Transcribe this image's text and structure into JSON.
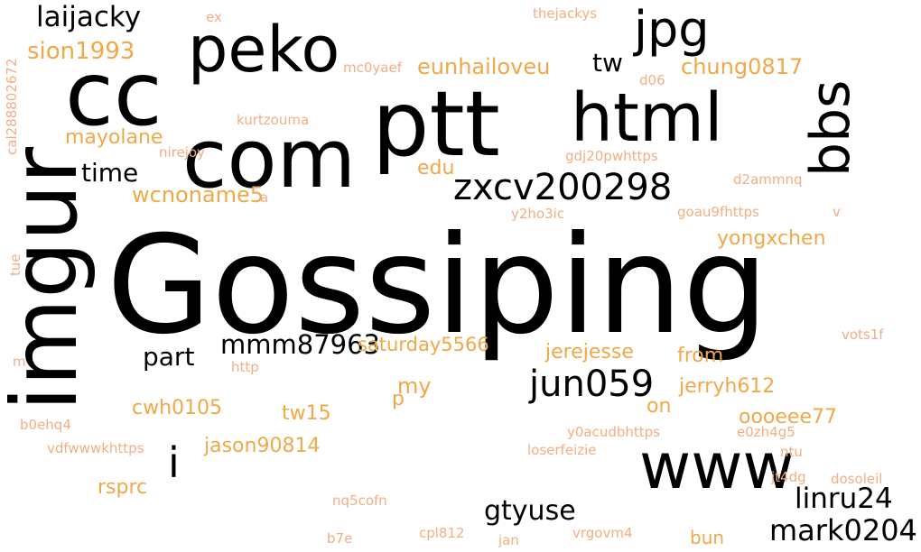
{
  "words": [
    {
      "text": "Gossiping",
      "color": "pink"
    },
    {
      "text": "imgur",
      "color": "pink"
    },
    {
      "text": "ptt",
      "color": "pink"
    },
    {
      "text": "com",
      "color": "pink"
    },
    {
      "text": "cc",
      "color": "pink"
    },
    {
      "text": "peko",
      "color": "pink"
    },
    {
      "text": "html",
      "color": "pink"
    },
    {
      "text": "www",
      "color": "pink"
    },
    {
      "text": "bbs",
      "color": "pink"
    },
    {
      "text": "jpg",
      "color": "pink"
    },
    {
      "text": "zxcv200298",
      "color": "pink"
    },
    {
      "text": "jun059",
      "color": "pink"
    },
    {
      "text": "laijacky",
      "color": "pink"
    },
    {
      "text": "mark0204",
      "color": "pink"
    },
    {
      "text": "linru24",
      "color": "pink"
    },
    {
      "text": "gtyuse",
      "color": "pink"
    },
    {
      "text": "time",
      "color": "pink"
    },
    {
      "text": "part",
      "color": "pink"
    },
    {
      "text": "tw",
      "color": "pink"
    },
    {
      "text": "i",
      "color": "pink"
    },
    {
      "text": "mmm87963",
      "color": "pink"
    },
    {
      "text": "sion1993",
      "color": "orange"
    },
    {
      "text": "eunhailoveu",
      "color": "orange"
    },
    {
      "text": "chung0817",
      "color": "orange"
    },
    {
      "text": "mayolane",
      "color": "orange"
    },
    {
      "text": "wcnoname5",
      "color": "orange"
    },
    {
      "text": "edu",
      "color": "orange"
    },
    {
      "text": "yongxchen",
      "color": "orange"
    },
    {
      "text": "saturday5566",
      "color": "orange"
    },
    {
      "text": "jerejesse",
      "color": "orange"
    },
    {
      "text": "from",
      "color": "orange"
    },
    {
      "text": "jerryh612",
      "color": "orange"
    },
    {
      "text": "cwh0105",
      "color": "orange"
    },
    {
      "text": "tw15",
      "color": "orange"
    },
    {
      "text": "my",
      "color": "orange"
    },
    {
      "text": "p",
      "color": "orange"
    },
    {
      "text": "on",
      "color": "orange"
    },
    {
      "text": "oooeee77",
      "color": "orange"
    },
    {
      "text": "jason90814",
      "color": "orange"
    },
    {
      "text": "rsprc",
      "color": "orange"
    },
    {
      "text": "bun",
      "color": "orange"
    },
    {
      "text": "thejackys",
      "color": "peach"
    },
    {
      "text": "ex",
      "color": "peach"
    },
    {
      "text": "mc0yaef",
      "color": "peach"
    },
    {
      "text": "d06",
      "color": "peach"
    },
    {
      "text": "kurtzouma",
      "color": "peach"
    },
    {
      "text": "nirejoy",
      "color": "peach"
    },
    {
      "text": "gdj20pwhttps",
      "color": "peach"
    },
    {
      "text": "d2ammnq",
      "color": "peach"
    },
    {
      "text": "y2ho3ic",
      "color": "peach"
    },
    {
      "text": "goau9fhttps",
      "color": "peach"
    },
    {
      "text": "v",
      "color": "peach"
    },
    {
      "text": "a",
      "color": "peach"
    },
    {
      "text": "vots1f",
      "color": "peach"
    },
    {
      "text": "http",
      "color": "peach"
    },
    {
      "text": "y0acudbhttps",
      "color": "peach"
    },
    {
      "text": "e0zh4g5",
      "color": "peach"
    },
    {
      "text": "b0ehq4",
      "color": "peach"
    },
    {
      "text": "vdfwwwkhttps",
      "color": "peach"
    },
    {
      "text": "loserfeizie",
      "color": "peach"
    },
    {
      "text": "ntu",
      "color": "peach"
    },
    {
      "text": "jt4dg",
      "color": "peach"
    },
    {
      "text": "dosoleil",
      "color": "peach"
    },
    {
      "text": "nq5cofn",
      "color": "peach"
    },
    {
      "text": "b7e",
      "color": "peach"
    },
    {
      "text": "cpl812",
      "color": "peach"
    },
    {
      "text": "jan",
      "color": "peach"
    },
    {
      "text": "vrgovm4",
      "color": "peach"
    },
    {
      "text": "m",
      "color": "peach"
    },
    {
      "text": "tue",
      "color": "peach"
    },
    {
      "text": "cal288802672",
      "color": "peach"
    }
  ]
}
